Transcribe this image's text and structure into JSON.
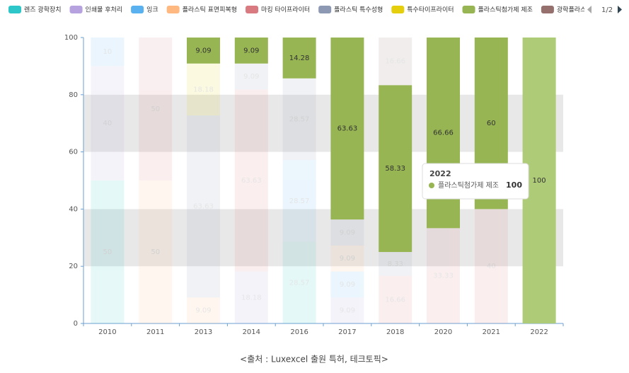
{
  "chart_data": {
    "type": "bar",
    "stacked": true,
    "categories": [
      "2010",
      "2011",
      "2013",
      "2014",
      "2016",
      "2017",
      "2018",
      "2020",
      "2021",
      "2022"
    ],
    "series": [
      {
        "name": "렌즈 광학장치",
        "color": "#2ec7c9",
        "values": [
          50,
          null,
          null,
          null,
          28.57,
          null,
          null,
          null,
          null,
          null
        ]
      },
      {
        "name": "인쇄물 후처리",
        "color": "#b6a2de",
        "values": [
          40,
          null,
          null,
          18.18,
          null,
          9.09,
          null,
          null,
          null,
          null
        ]
      },
      {
        "name": "잉크",
        "color": "#5ab1ef",
        "values": [
          10,
          null,
          null,
          null,
          28.57,
          9.09,
          null,
          null,
          null,
          null
        ]
      },
      {
        "name": "플라스틱 표면피복형",
        "color": "#ffb980",
        "values": [
          null,
          50,
          9.09,
          null,
          null,
          9.09,
          null,
          null,
          null,
          null
        ]
      },
      {
        "name": "마킹 타이프라이터",
        "color": "#d87a80",
        "values": [
          null,
          50,
          null,
          63.63,
          null,
          null,
          16.66,
          33.33,
          40,
          null
        ]
      },
      {
        "name": "플라스틱 특수성형",
        "color": "#8d98b3",
        "values": [
          null,
          null,
          63.63,
          9.09,
          28.57,
          9.09,
          8.33,
          null,
          null,
          null
        ]
      },
      {
        "name": "특수타이프라이터",
        "color": "#e5cf0d",
        "values": [
          null,
          null,
          18.18,
          null,
          null,
          null,
          null,
          null,
          null,
          null
        ]
      },
      {
        "name": "플라스틱첨가제 제조",
        "color": "#97b552",
        "values": [
          null,
          null,
          9.09,
          9.09,
          14.28,
          63.63,
          58.33,
          66.66,
          60,
          100
        ]
      },
      {
        "name": "광학플라스틱",
        "color": "#95706d",
        "values": [
          null,
          null,
          null,
          null,
          null,
          null,
          16.66,
          null,
          null,
          null
        ]
      }
    ],
    "ylim": [
      0,
      100
    ],
    "yticks": [
      0,
      20,
      40,
      60,
      80,
      100
    ],
    "split_area": true,
    "highlight_series": 7,
    "hover_category": 9,
    "legend": "top",
    "legend_page": "1/2",
    "caption": "<출처 : Luxexcel 출원 특허, 테크토픽>"
  }
}
